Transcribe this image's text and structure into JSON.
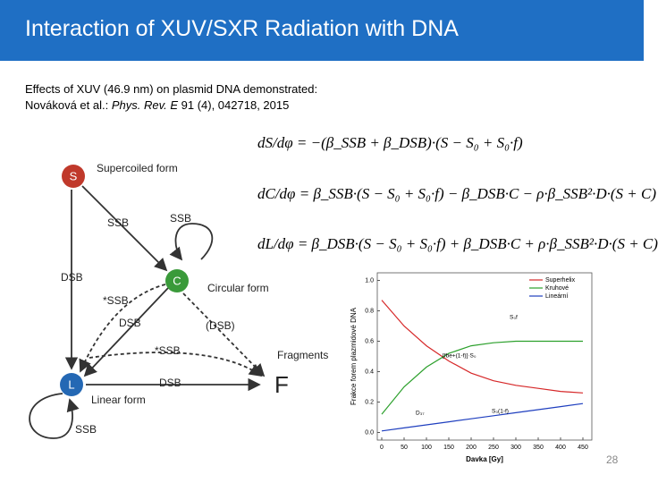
{
  "header": {
    "title": "Interaction of XUV/SXR Radiation with DNA"
  },
  "intro": {
    "line1": "Effects of XUV (46.9 nm) on plasmid DNA demonstrated:",
    "authors": "Nováková et al.: ",
    "journal": "Phys. Rev. E",
    "rest": " 91 (4), 042718, 2015"
  },
  "diagram": {
    "nodes": [
      {
        "label": "S",
        "caption": "Supercoiled form"
      },
      {
        "label": "C",
        "caption": "Circular form"
      },
      {
        "label": "L",
        "caption": "Linear form"
      },
      {
        "label": "F",
        "caption": "Fragments"
      }
    ],
    "edges": [
      "SSB",
      "SSB",
      "DSB",
      "*SSB",
      "DSB",
      "(DSB)",
      "*SSB",
      "DSB",
      "SSB"
    ]
  },
  "equations": [
    "dS/dφ = −(β_SSB + β_DSB)·(S − S₀ + S₀·f)",
    "dC/dφ = β_SSB·(S − S₀ + S₀·f) − β_DSB·C − ρ·β_SSB²·D·(S + C)",
    "dL/dφ = β_DSB·(S − S₀ + S₀·f) + β_DSB·C + ρ·β_SSB²·D·(S + C)"
  ],
  "chart_data": {
    "type": "line",
    "x_label": "Davka [Gy]",
    "y_label": "Frakce forem plazmidové DNA",
    "x": [
      0,
      50,
      100,
      150,
      200,
      250,
      300,
      350,
      400,
      450
    ],
    "series": [
      {
        "name": "Superhelix",
        "color": "#d62728",
        "values": [
          0.87,
          0.7,
          0.57,
          0.47,
          0.39,
          0.34,
          0.31,
          0.29,
          0.27,
          0.26
        ]
      },
      {
        "name": "Kruhové",
        "color": "#2ca02c",
        "values": [
          0.12,
          0.3,
          0.43,
          0.52,
          0.57,
          0.59,
          0.6,
          0.6,
          0.6,
          0.6
        ]
      },
      {
        "name": "Lineární",
        "color": "#1f3fbf",
        "values": [
          0.01,
          0.03,
          0.05,
          0.07,
          0.09,
          0.11,
          0.13,
          0.15,
          0.17,
          0.19
        ]
      }
    ],
    "xlim": [
      -10,
      470
    ],
    "ylim": [
      -0.05,
      1.05
    ],
    "xticks": [
      0,
      50,
      100,
      150,
      200,
      250,
      300,
      350,
      400,
      450
    ],
    "yticks": [
      {
        "value": 0,
        "label": "0.0"
      },
      {
        "value": 0.2,
        "label": "0.2"
      },
      {
        "value": 0.4,
        "label": "0.4"
      },
      {
        "value": 0.6,
        "label": "0.6"
      },
      {
        "value": 0.8,
        "label": "0.8"
      },
      {
        "value": 1,
        "label": "1.0"
      }
    ],
    "annotations": [
      "S₀f",
      "[fbe+(1-f)]·S₀",
      "D₃₇",
      "S₀(1-f)"
    ],
    "legend": "top-right"
  },
  "page_number": "28"
}
